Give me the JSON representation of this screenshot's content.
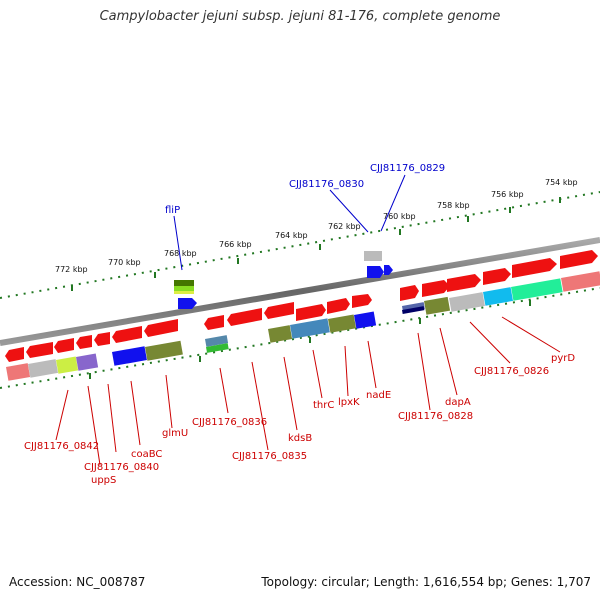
{
  "title": "Campylobacter jejuni subsp. jejuni 81-176, complete genome",
  "footer": {
    "accession": "Accession: NC_008787",
    "topology": "Topology: circular; Length: 1,616,554 bp; Genes: 1,707"
  },
  "scale_labels": [
    "772 kbp",
    "770 kbp",
    "768 kbp",
    "766 kbp",
    "764 kbp",
    "762 kbp",
    "760 kbp",
    "758 kbp",
    "756 kbp",
    "754 kbp"
  ],
  "gene_labels": {
    "flip": "fliP",
    "cjj0830": "CJJ81176_0830",
    "cjj0829": "CJJ81176_0829",
    "cjj0842": "CJJ81176_0842",
    "cjj0840": "CJJ81176_0840",
    "upps": "uppS",
    "coabc": "coaBC",
    "glmu": "glmU",
    "cjj0836": "CJJ81176_0836",
    "cjj0835": "CJJ81176_0835",
    "kdsb": "kdsB",
    "thrc": "thrC",
    "lpxk": "lpxK",
    "nade": "nadE",
    "cjj0828": "CJJ81176_0828",
    "dapa": "dapA",
    "cjj0826": "CJJ81176_0826",
    "pyrd": "pyrD"
  },
  "colors": {
    "gene_red": "#ee1111",
    "backbone": "#777777",
    "tick": "#227722",
    "label_red": "#cc0000",
    "label_blue": "#0000cc"
  }
}
